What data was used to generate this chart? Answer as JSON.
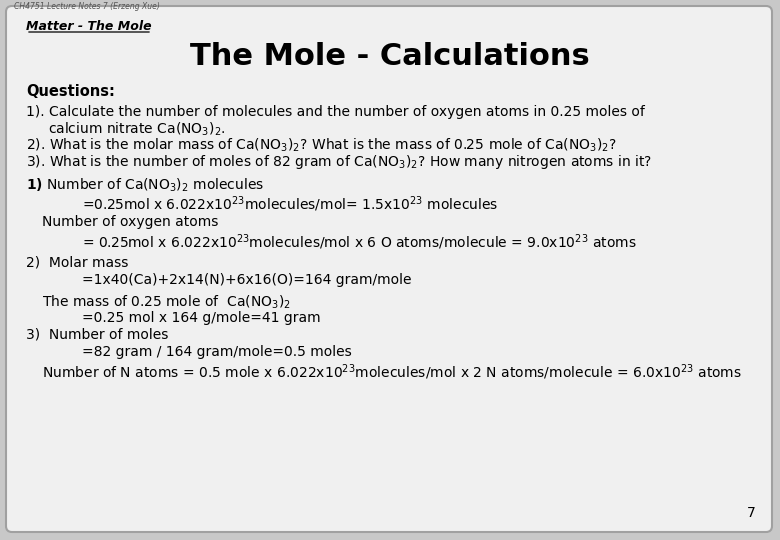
{
  "slide_bg": "#c8c8c8",
  "box_bg": "#f0f0f0",
  "box_edge": "#a0a0a0",
  "header_text": "CH4751 Lecture Notes 7 (Erzeng Xue)",
  "section_label": "Matter - The Mole",
  "title": "The Mole - Calculations",
  "page_number": "7"
}
